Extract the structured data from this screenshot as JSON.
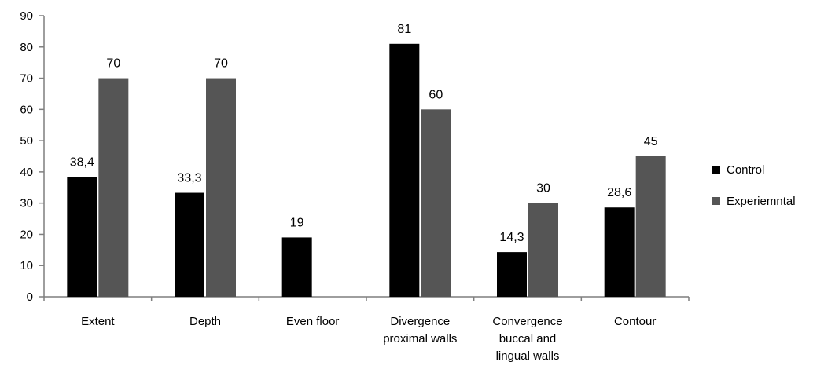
{
  "chart_data": {
    "type": "bar",
    "categories": [
      [
        "Extent"
      ],
      [
        "Depth"
      ],
      [
        "Even floor"
      ],
      [
        "Divergence",
        "proximal walls"
      ],
      [
        "Convergence",
        "buccal and",
        "lingual walls"
      ],
      [
        "Contour"
      ]
    ],
    "series": [
      {
        "name": "Control",
        "color": "#000000",
        "values": [
          38.4,
          33.3,
          19,
          81,
          14.3,
          28.6
        ],
        "labels": [
          "38,4",
          "33,3",
          "19",
          "81",
          "14,3",
          "28,6"
        ]
      },
      {
        "name": "Experiemntal",
        "color": "#555555",
        "values": [
          70,
          70,
          null,
          60,
          30,
          45
        ],
        "labels": [
          "70",
          "70",
          "",
          "60",
          "30",
          "45"
        ]
      }
    ],
    "ylim": [
      0,
      90
    ],
    "yticks": [
      0,
      10,
      20,
      30,
      40,
      50,
      60,
      70,
      80,
      90
    ],
    "grid": false,
    "legend": "right"
  }
}
